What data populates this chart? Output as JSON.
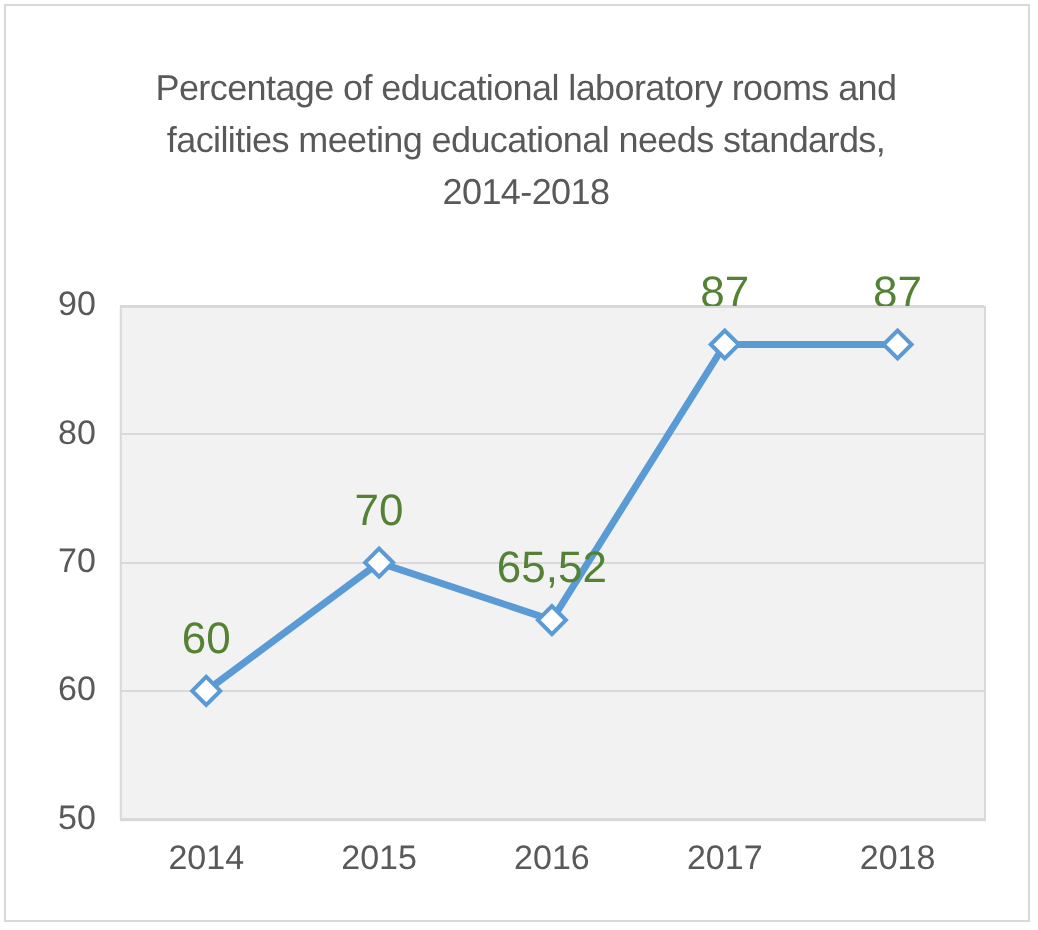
{
  "chart_data": {
    "type": "line",
    "title": "Percentage of educational laboratory rooms and facilities meeting educational needs standards, 2014-2018",
    "categories": [
      "2014",
      "2015",
      "2016",
      "2017",
      "2018"
    ],
    "series": [
      {
        "color": "#5b9bd5",
        "values": [
          60,
          70,
          65.52,
          87,
          87
        ],
        "value_labels": [
          "60",
          "70",
          "65,52",
          "87",
          "87"
        ]
      }
    ],
    "ylim": [
      50,
      90
    ],
    "yticks": [
      50,
      60,
      70,
      80,
      90
    ],
    "grid": "y",
    "legend": false,
    "marker": "diamond",
    "line_style": "solid"
  }
}
